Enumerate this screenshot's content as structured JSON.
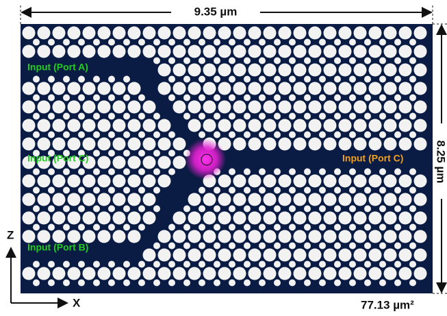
{
  "dimensions": {
    "width": "9.35 µm",
    "height": "8.25 µm",
    "area": "77.13 µm²"
  },
  "ports": {
    "a": "Input (Port A)",
    "c_left": "Input (Port C)",
    "b": "Input (Port B)",
    "c_right": "Input (Port C)"
  },
  "axes": {
    "z": "Z",
    "x": "X"
  }
}
